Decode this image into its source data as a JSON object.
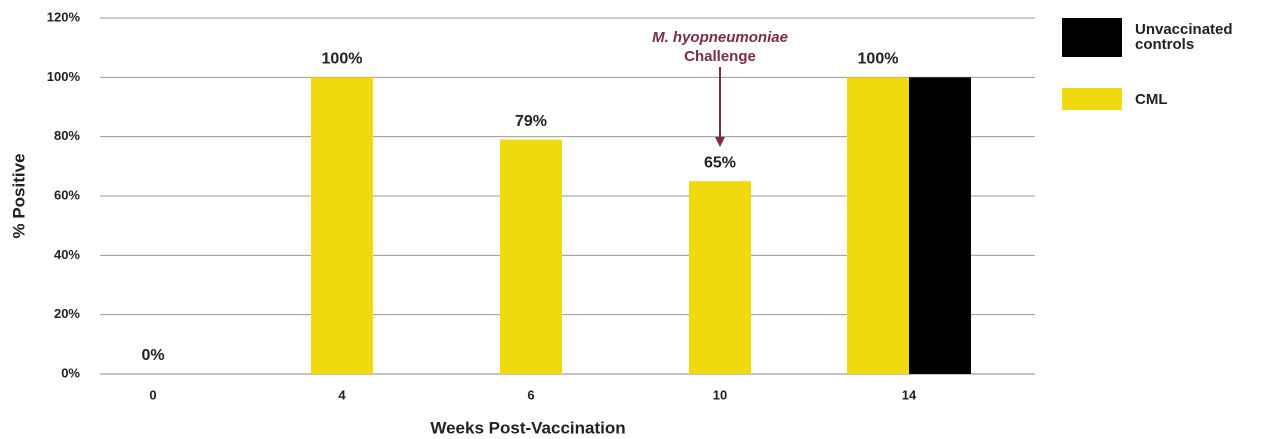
{
  "chart_data": {
    "type": "bar",
    "x_label": "Weeks Post-Vaccination",
    "y_label": "% Positive",
    "annotation": [
      "M. hyopneumoniae",
      "Challenge"
    ],
    "annotation_color": "#7b2d42",
    "categories": [
      "0",
      "4",
      "6",
      "10",
      "14"
    ],
    "series": [
      {
        "name": "Unvaccinated controls",
        "color": "#000000",
        "values": [
          null,
          null,
          null,
          null,
          100
        ]
      },
      {
        "name": "CML",
        "color": "#f0d90f",
        "values": [
          0,
          100,
          79,
          65,
          100
        ],
        "value_labels": [
          "0%",
          "100%",
          "79%",
          "65%",
          "100%"
        ]
      }
    ],
    "ylim": [
      0,
      120
    ],
    "yticks": [
      {
        "value": 0,
        "label": "0%"
      },
      {
        "value": 20,
        "label": "20%"
      },
      {
        "value": 40,
        "label": "40%"
      },
      {
        "value": 60,
        "label": "60%"
      },
      {
        "value": 80,
        "label": "80%"
      },
      {
        "value": 100,
        "label": "100%"
      },
      {
        "value": 120,
        "label": "120%"
      }
    ],
    "grid": true,
    "legend": "right"
  }
}
